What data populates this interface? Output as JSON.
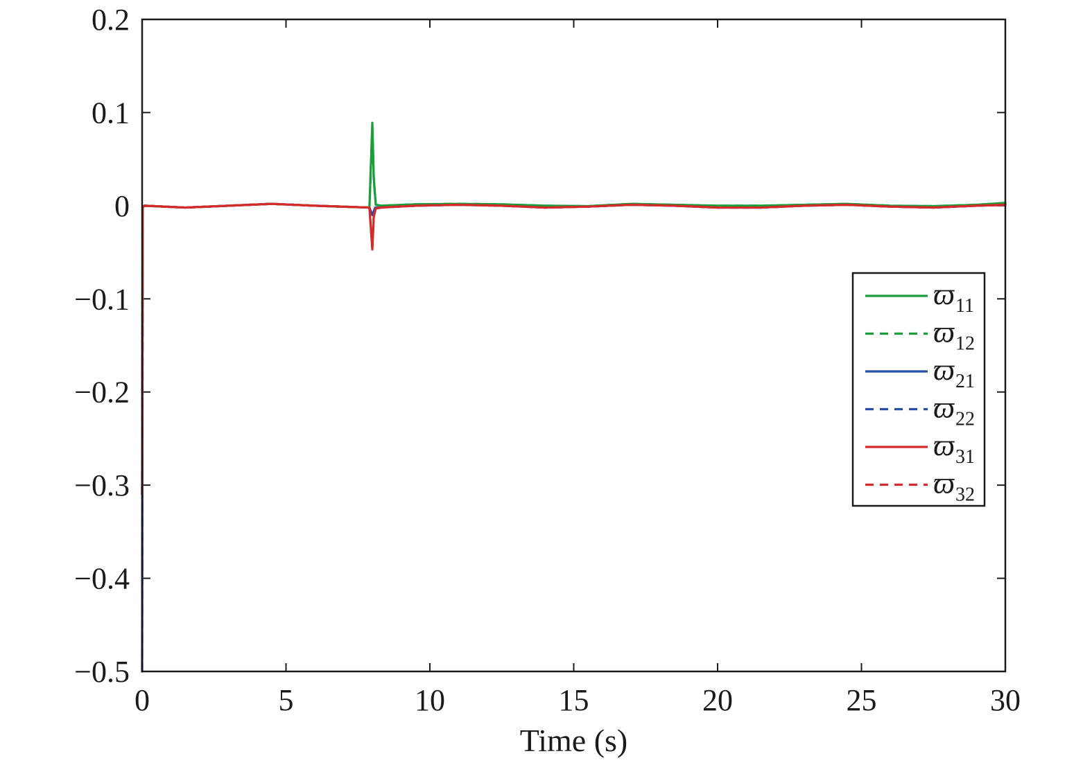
{
  "chart_data": {
    "type": "line",
    "title": "",
    "xlabel": "Time (s)",
    "ylabel": "",
    "xlim": [
      0,
      30
    ],
    "ylim": [
      -0.5,
      0.2
    ],
    "xticks": [
      0,
      5,
      10,
      15,
      20,
      25,
      30
    ],
    "xtick_labels": [
      "0",
      "5",
      "10",
      "15",
      "20",
      "25",
      "30"
    ],
    "yticks": [
      0.2,
      0.1,
      0,
      -0.1,
      -0.2,
      -0.3,
      -0.4,
      -0.5
    ],
    "ytick_labels": [
      "0.2",
      "0.1",
      "0",
      "−0.1",
      "−0.2",
      "−0.3",
      "−0.4",
      "−0.5"
    ],
    "grid": false,
    "legend_position": "right",
    "series": [
      {
        "name": "ϖ11",
        "symbol": "ϖ",
        "subscript": "11",
        "color": "#1a9e3a",
        "style": "solid",
        "x": [
          0,
          0.02,
          0.08,
          1.5,
          3,
          4.5,
          6,
          7.9,
          8.0,
          8.05,
          8.12,
          8.3,
          9.5,
          11,
          12.5,
          14,
          15.5,
          17,
          18.5,
          20,
          21.5,
          23,
          24.5,
          26,
          27.5,
          29,
          30
        ],
        "y": [
          -0.31,
          -0.002,
          0.0,
          -0.002,
          0.0,
          0.002,
          0.0,
          -0.002,
          0.089,
          0.03,
          0.001,
          0.0,
          0.0015,
          0.002,
          0.0015,
          0.0,
          -0.0005,
          0.002,
          0.001,
          0.0,
          0.0,
          0.001,
          0.002,
          0.0,
          -0.0005,
          0.001,
          0.003
        ]
      },
      {
        "name": "ϖ12",
        "symbol": "ϖ",
        "subscript": "12",
        "color": "#1a9e3a",
        "style": "dashed",
        "x": [
          0,
          0.02,
          0.08,
          1.5,
          3,
          4.5,
          6,
          7.9,
          8.0,
          8.05,
          8.12,
          8.3,
          9.5,
          11,
          12.5,
          14,
          15.5,
          17,
          18.5,
          20,
          21.5,
          23,
          24.5,
          26,
          27.5,
          29,
          30
        ],
        "y": [
          -0.31,
          -0.002,
          0.0,
          -0.002,
          0.0,
          0.002,
          0.0,
          -0.002,
          0.085,
          0.028,
          0.001,
          0.0,
          0.0015,
          0.002,
          0.0015,
          0.0,
          -0.0005,
          0.002,
          0.001,
          0.0,
          0.0,
          0.001,
          0.002,
          0.0,
          -0.0005,
          0.001,
          0.003
        ]
      },
      {
        "name": "ϖ21",
        "symbol": "ϖ",
        "subscript": "21",
        "color": "#2a4ea6",
        "style": "solid",
        "x": [
          0,
          0.02,
          0.08,
          1.5,
          3,
          4.5,
          6,
          7.9,
          8.0,
          8.1,
          9.5,
          11,
          12.5,
          14,
          15.5,
          17,
          18.5,
          20,
          21.5,
          23,
          24.5,
          26,
          27.5,
          29,
          30
        ],
        "y": [
          -0.5,
          -0.002,
          0.0,
          -0.002,
          0.0,
          0.002,
          0.0,
          -0.002,
          -0.01,
          -0.002,
          0.0,
          0.001,
          0.0,
          -0.002,
          -0.001,
          0.001,
          0.0,
          -0.002,
          -0.002,
          0.0,
          0.001,
          -0.001,
          -0.002,
          0.0,
          0.001
        ]
      },
      {
        "name": "ϖ22",
        "symbol": "ϖ",
        "subscript": "22",
        "color": "#2a4ea6",
        "style": "dashed",
        "x": [
          0,
          0.02,
          0.08,
          1.5,
          3,
          4.5,
          6,
          7.9,
          8.0,
          8.1,
          9.5,
          11,
          12.5,
          14,
          15.5,
          17,
          18.5,
          20,
          21.5,
          23,
          24.5,
          26,
          27.5,
          29,
          30
        ],
        "y": [
          -0.5,
          -0.002,
          0.0,
          -0.002,
          0.0,
          0.002,
          0.0,
          -0.002,
          -0.01,
          -0.002,
          0.0,
          0.001,
          0.0,
          -0.002,
          -0.001,
          0.001,
          0.0,
          -0.002,
          -0.002,
          0.0,
          0.001,
          -0.001,
          -0.002,
          0.0,
          0.001
        ]
      },
      {
        "name": "ϖ31",
        "symbol": "ϖ",
        "subscript": "31",
        "color": "#d62a2a",
        "style": "solid",
        "x": [
          0,
          0.02,
          0.08,
          1.5,
          3,
          4.5,
          6,
          7.9,
          8.0,
          8.05,
          8.12,
          8.3,
          9.5,
          11,
          12.5,
          14,
          15.5,
          17,
          18.5,
          20,
          21.5,
          23,
          24.5,
          26,
          27.5,
          29,
          30
        ],
        "y": [
          -0.31,
          -0.002,
          0.0,
          -0.002,
          0.0,
          0.002,
          0.0,
          -0.002,
          -0.047,
          -0.012,
          -0.003,
          -0.002,
          0.0,
          0.001,
          0.0,
          -0.002,
          -0.001,
          0.001,
          0.0,
          -0.002,
          -0.002,
          0.0,
          0.001,
          -0.001,
          -0.002,
          0.0,
          0.001
        ]
      },
      {
        "name": "ϖ32",
        "symbol": "ϖ",
        "subscript": "32",
        "color": "#d62a2a",
        "style": "dashed",
        "x": [
          0,
          0.02,
          0.08,
          1.5,
          3,
          4.5,
          6,
          7.9,
          8.0,
          8.05,
          8.12,
          8.3,
          9.5,
          11,
          12.5,
          14,
          15.5,
          17,
          18.5,
          20,
          21.5,
          23,
          24.5,
          26,
          27.5,
          29,
          30
        ],
        "y": [
          -0.31,
          -0.002,
          0.0,
          -0.002,
          0.0,
          0.002,
          0.0,
          -0.002,
          -0.045,
          -0.011,
          -0.003,
          -0.002,
          0.0,
          0.001,
          0.0,
          -0.002,
          -0.001,
          0.001,
          0.0,
          -0.002,
          -0.002,
          0.0,
          0.001,
          -0.001,
          -0.002,
          0.0,
          0.001
        ]
      }
    ]
  }
}
